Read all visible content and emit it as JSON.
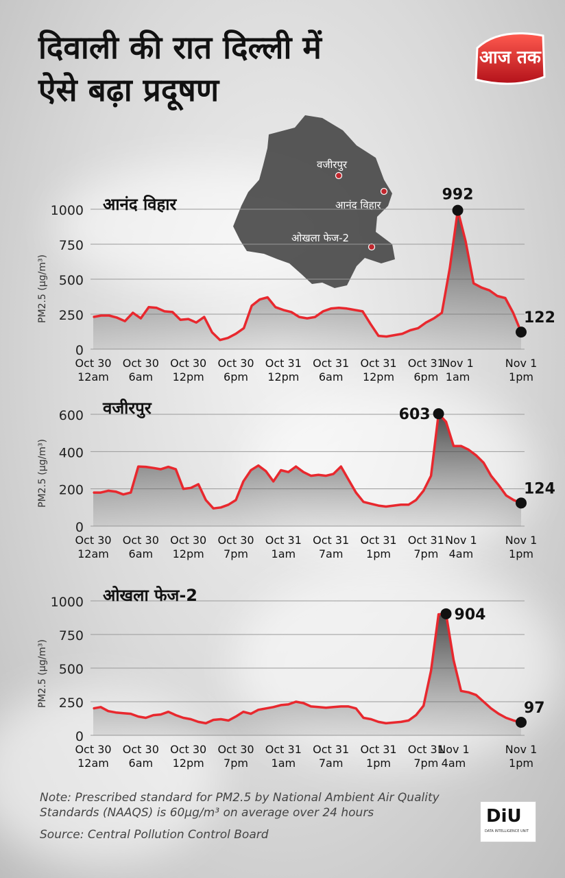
{
  "title": {
    "line1": "दिवाली की रात दिल्ली में",
    "line2": "ऐसे बढ़ा प्रदूषण"
  },
  "logo": {
    "text": "आज तक",
    "brand_color": "#e8282e"
  },
  "map": {
    "labels": [
      "वजीरपुर",
      "आनंद विहार",
      "ओखला फेज-2"
    ]
  },
  "footer": {
    "note": "Note: Prescribed standard for PM2.5 by National Ambient Air Quality Standards (NAAQS) is 60µg/m³ on average over 24 hours",
    "source": "Source: Central Pollution Control Board"
  },
  "credit": {
    "text": "DiU",
    "sub": "DATA INTELLIGENCE UNIT"
  },
  "colors": {
    "line": "#e8282e",
    "fill": "#555555",
    "grid": "#9a9a9a"
  },
  "chart_data": [
    {
      "type": "area",
      "title": "आनंद विहार",
      "ylabel": "PM2.5 (µg/m³)",
      "ylim": [
        0,
        1000
      ],
      "yticks": [
        0,
        250,
        500,
        750,
        1000
      ],
      "xticks": [
        [
          "Oct 30",
          "12am"
        ],
        [
          "Oct 30",
          "6am"
        ],
        [
          "Oct 30",
          "12pm"
        ],
        [
          "Oct 30",
          "6pm"
        ],
        [
          "Oct 31",
          "12pm"
        ],
        [
          "Oct 31",
          "6am"
        ],
        [
          "Oct 31",
          "12pm"
        ],
        [
          "Oct 31",
          "6pm"
        ],
        [
          "Nov 1",
          "1am"
        ],
        [
          "Nov 1",
          "1pm"
        ]
      ],
      "values": [
        230,
        240,
        240,
        225,
        200,
        260,
        220,
        300,
        295,
        270,
        265,
        210,
        215,
        190,
        230,
        120,
        65,
        80,
        110,
        150,
        310,
        355,
        370,
        300,
        280,
        265,
        230,
        220,
        230,
        270,
        290,
        295,
        290,
        280,
        270,
        180,
        95,
        90,
        100,
        110,
        135,
        150,
        190,
        220,
        260,
        580,
        992,
        770,
        470,
        440,
        420,
        380,
        365,
        260,
        122
      ],
      "annotations": [
        {
          "label": "992",
          "index": 46
        },
        {
          "label": "122",
          "index": 54
        }
      ],
      "grid": true
    },
    {
      "type": "area",
      "title": "वजीरपुर",
      "ylabel": "PM2.5 (µg/m³)",
      "ylim": [
        0,
        600
      ],
      "yticks": [
        0,
        200,
        400,
        600
      ],
      "xticks": [
        [
          "Oct 30",
          "12am"
        ],
        [
          "Oct 30",
          "6am"
        ],
        [
          "Oct 30",
          "12pm"
        ],
        [
          "Oct 30",
          "7pm"
        ],
        [
          "Oct 31",
          "1am"
        ],
        [
          "Oct 31",
          "7am"
        ],
        [
          "Oct 31",
          "1pm"
        ],
        [
          "Oct 31",
          "7pm"
        ],
        [
          "Nov 1",
          "4am"
        ],
        [
          "Nov 1",
          "1pm"
        ]
      ],
      "values": [
        180,
        180,
        190,
        185,
        170,
        180,
        320,
        318,
        312,
        305,
        318,
        305,
        200,
        205,
        225,
        140,
        95,
        100,
        115,
        140,
        240,
        300,
        325,
        295,
        240,
        300,
        290,
        320,
        290,
        270,
        275,
        270,
        280,
        320,
        250,
        180,
        130,
        120,
        110,
        105,
        110,
        115,
        115,
        140,
        190,
        270,
        603,
        560,
        430,
        430,
        410,
        380,
        340,
        270,
        220,
        165,
        140,
        124
      ],
      "annotations": [
        {
          "label": "603",
          "index": 46
        },
        {
          "label": "124",
          "index": 57
        }
      ],
      "grid": true
    },
    {
      "type": "area",
      "title": "ओखला फेज-2",
      "ylabel": "PM2.5 (µg/m³)",
      "ylim": [
        0,
        1000
      ],
      "yticks": [
        0,
        250,
        500,
        750,
        1000
      ],
      "xticks": [
        [
          "Oct 30",
          "12am"
        ],
        [
          "Oct 30",
          "6am"
        ],
        [
          "Oct 30",
          "12pm"
        ],
        [
          "Oct 30",
          "7pm"
        ],
        [
          "Oct 31",
          "1am"
        ],
        [
          "Oct 31",
          "7am"
        ],
        [
          "Oct 31",
          "1pm"
        ],
        [
          "Oct 31",
          "7pm"
        ],
        [
          "Nov 1",
          "4am"
        ],
        [
          "Nov 1",
          "1pm"
        ]
      ],
      "values": [
        200,
        210,
        180,
        170,
        165,
        160,
        140,
        130,
        150,
        155,
        175,
        150,
        130,
        120,
        100,
        90,
        115,
        120,
        110,
        140,
        175,
        160,
        190,
        200,
        210,
        225,
        230,
        250,
        240,
        215,
        210,
        205,
        210,
        215,
        215,
        200,
        130,
        120,
        100,
        90,
        95,
        100,
        110,
        150,
        220,
        480,
        900,
        904,
        560,
        330,
        320,
        300,
        250,
        200,
        160,
        130,
        110,
        97
      ],
      "annotations": [
        {
          "label": "904",
          "index": 47
        },
        {
          "label": "97",
          "index": 57
        }
      ],
      "grid": true
    }
  ]
}
